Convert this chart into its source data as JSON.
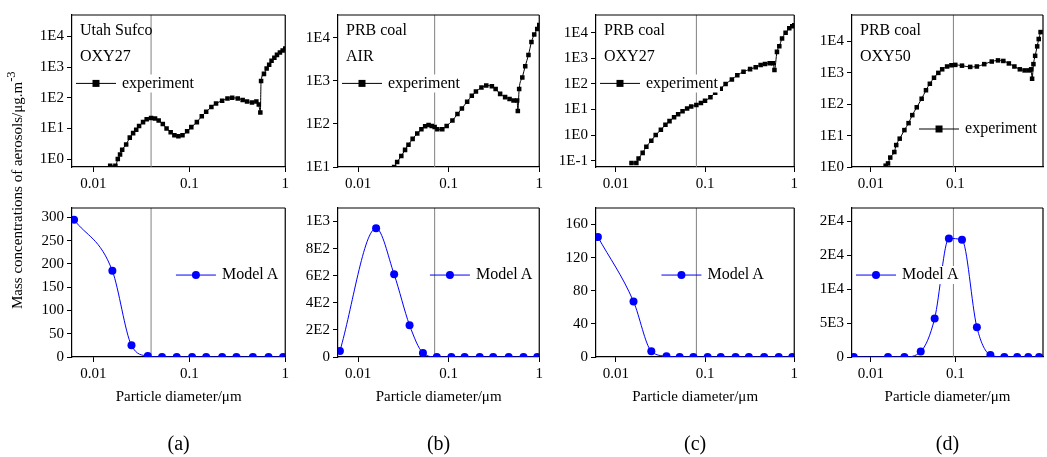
{
  "chart_data": [
    {
      "type": "line",
      "ylabel": "Mass concentrations of aerosols/μg.m$^{-3}$",
      "annotations": [
        "Utah Sufco",
        "OXY27"
      ],
      "log": "xy",
      "legend": "left",
      "marker": "square",
      "line_style": "solid",
      "xlim": [
        0.006,
        1
      ],
      "xticks": [
        0.01,
        0.1,
        1
      ],
      "ylim": [
        0.55,
        50000
      ],
      "yticks": [
        {
          "value": 1,
          "label": "1E0"
        },
        {
          "value": 10,
          "label": "1E1"
        },
        {
          "value": 100,
          "label": "1E2"
        },
        {
          "value": 1000,
          "label": "1E3"
        },
        {
          "value": 10000,
          "label": "1E4"
        }
      ],
      "ref_lines": [
        {
          "axis": "x",
          "value": 0.04,
          "color": "#808080"
        }
      ],
      "series": [
        {
          "name": "experiment",
          "color": "#000000",
          "x": [
            0.015,
            0.017,
            0.018,
            0.019,
            0.02,
            0.022,
            0.024,
            0.026,
            0.028,
            0.03,
            0.033,
            0.036,
            0.04,
            0.044,
            0.048,
            0.053,
            0.058,
            0.064,
            0.07,
            0.077,
            0.085,
            0.095,
            0.105,
            0.12,
            0.135,
            0.15,
            0.17,
            0.19,
            0.22,
            0.25,
            0.28,
            0.32,
            0.36,
            0.4,
            0.45,
            0.5,
            0.53,
            0.55,
            0.56,
            0.6,
            0.64,
            0.68,
            0.72,
            0.77,
            0.82,
            0.88,
            0.94,
            1.0
          ],
          "values": [
            0.6,
            0.6,
            1.0,
            1.4,
            2,
            3,
            5,
            7,
            9,
            12,
            16,
            20,
            22,
            21,
            18,
            14,
            10,
            7.5,
            6,
            5.5,
            6,
            8,
            11,
            16,
            25,
            35,
            50,
            65,
            80,
            95,
            100,
            95,
            85,
            75,
            70,
            75,
            60,
            33,
            350,
            600,
            900,
            1200,
            1600,
            2000,
            2500,
            3000,
            3500,
            4000
          ]
        }
      ]
    },
    {
      "type": "line",
      "annotations": [
        "PRB coal",
        "AIR"
      ],
      "log": "xy",
      "legend": "left",
      "marker": "square",
      "line_style": "solid",
      "xlim": [
        0.006,
        1
      ],
      "xticks": [
        0.01,
        0.1,
        1
      ],
      "ylim": [
        10,
        34000
      ],
      "yticks": [
        {
          "value": 10,
          "label": "1E1"
        },
        {
          "value": 100,
          "label": "1E2"
        },
        {
          "value": 1000,
          "label": "1E3"
        },
        {
          "value": 10000,
          "label": "1E4"
        }
      ],
      "ref_lines": [
        {
          "axis": "x",
          "value": 0.07,
          "color": "#808080"
        }
      ],
      "series": [
        {
          "name": "experiment",
          "color": "#000000",
          "x": [
            0.025,
            0.027,
            0.03,
            0.033,
            0.036,
            0.04,
            0.045,
            0.05,
            0.055,
            0.06,
            0.065,
            0.07,
            0.075,
            0.085,
            0.095,
            0.11,
            0.125,
            0.14,
            0.16,
            0.18,
            0.2,
            0.23,
            0.26,
            0.3,
            0.33,
            0.37,
            0.42,
            0.47,
            0.52,
            0.57,
            0.58,
            0.6,
            0.65,
            0.7,
            0.76,
            0.82,
            0.88,
            0.95,
            1.0
          ],
          "values": [
            10,
            13,
            18,
            25,
            33,
            45,
            60,
            75,
            88,
            95,
            90,
            85,
            75,
            75,
            90,
            120,
            170,
            230,
            330,
            450,
            570,
            700,
            780,
            750,
            650,
            500,
            420,
            380,
            350,
            350,
            200,
            650,
            1200,
            2200,
            4000,
            8000,
            12000,
            16000,
            20000
          ]
        }
      ]
    },
    {
      "type": "line",
      "annotations": [
        "PRB coal",
        "OXY27"
      ],
      "log": "xy",
      "legend": "left",
      "marker": "square",
      "line_style": "solid",
      "xlim": [
        0.006,
        1
      ],
      "xticks": [
        0.01,
        0.1,
        1
      ],
      "ylim": [
        0.056,
        50000
      ],
      "yticks": [
        {
          "value": 0.1,
          "label": "1E-1"
        },
        {
          "value": 1,
          "label": "1E0"
        },
        {
          "value": 10,
          "label": "1E1"
        },
        {
          "value": 100,
          "label": "1E2"
        },
        {
          "value": 1000,
          "label": "1E3"
        },
        {
          "value": 10000,
          "label": "1E4"
        }
      ],
      "ref_lines": [
        {
          "axis": "x",
          "value": 0.08,
          "color": "#808080"
        }
      ],
      "series": [
        {
          "name": "experiment",
          "color": "#000000",
          "x": [
            0.015,
            0.017,
            0.018,
            0.02,
            0.022,
            0.025,
            0.028,
            0.032,
            0.036,
            0.04,
            0.045,
            0.05,
            0.056,
            0.063,
            0.07,
            0.08,
            0.09,
            0.1,
            0.115,
            0.13,
            0.15,
            0.17,
            0.2,
            0.23,
            0.27,
            0.32,
            0.37,
            0.42,
            0.47,
            0.53,
            0.58,
            0.6,
            0.64,
            0.68,
            0.73,
            0.8,
            0.88,
            0.95,
            1.0
          ],
          "values": [
            0.08,
            0.08,
            0.12,
            0.2,
            0.35,
            0.6,
            1,
            1.6,
            2.5,
            3.5,
            5,
            6.5,
            8.5,
            11,
            13,
            15,
            18,
            22,
            30,
            45,
            65,
            100,
            150,
            220,
            300,
            380,
            450,
            550,
            600,
            650,
            650,
            350,
            1800,
            3000,
            6000,
            10000,
            15000,
            18000,
            20000
          ]
        }
      ]
    },
    {
      "type": "line",
      "annotations": [
        "PRB coal",
        "OXY50"
      ],
      "log": "xy",
      "legend": "bottom right",
      "marker": "square",
      "line_style": "solid",
      "xlim": [
        0.006,
        1.09
      ],
      "xticks": [
        0.01,
        0.1
      ],
      "ylim": [
        1,
        70000
      ],
      "yticks": [
        {
          "value": 1,
          "label": "1E0"
        },
        {
          "value": 10,
          "label": "1E1"
        },
        {
          "value": 100,
          "label": "1E2"
        },
        {
          "value": 1000,
          "label": "1E3"
        },
        {
          "value": 10000,
          "label": "1E4"
        }
      ],
      "ref_lines": [
        {
          "axis": "x",
          "value": 0.095,
          "color": "#808080"
        }
      ],
      "series": [
        {
          "name": "experiment",
          "color": "#000000",
          "x": [
            0.015,
            0.016,
            0.017,
            0.019,
            0.02,
            0.022,
            0.025,
            0.028,
            0.031,
            0.035,
            0.04,
            0.045,
            0.05,
            0.056,
            0.063,
            0.07,
            0.08,
            0.09,
            0.1,
            0.12,
            0.15,
            0.18,
            0.22,
            0.27,
            0.32,
            0.37,
            0.43,
            0.5,
            0.58,
            0.66,
            0.74,
            0.79,
            0.81,
            0.84,
            0.88,
            0.93,
            0.97,
            1.02
          ],
          "values": [
            1.1,
            1.3,
            2,
            3,
            5,
            8,
            15,
            25,
            45,
            80,
            150,
            280,
            450,
            700,
            1000,
            1300,
            1600,
            1750,
            1800,
            1700,
            1550,
            1600,
            1900,
            2300,
            2500,
            2400,
            2000,
            1600,
            1300,
            1200,
            1200,
            1300,
            650,
            1900,
            3500,
            7000,
            12000,
            20000
          ]
        }
      ]
    },
    {
      "type": "line",
      "xlabel": "Particle diameter/μm",
      "annotations": [
        "(a)"
      ],
      "log": "x",
      "legend": "right",
      "marker": "circle",
      "line_style": "solid",
      "xlim": [
        0.006,
        1
      ],
      "xticks": [
        0.01,
        0.1,
        1
      ],
      "ylim": [
        0,
        320
      ],
      "yticks": [
        0,
        50,
        100,
        150,
        200,
        250,
        300
      ],
      "ref_lines": [
        {
          "axis": "x",
          "value": 0.04,
          "color": "#808080"
        }
      ],
      "x": [
        0.0063,
        0.0158,
        0.025,
        0.037,
        0.052,
        0.074,
        0.107,
        0.15,
        0.22,
        0.31,
        0.46,
        0.67,
        0.95
      ],
      "series": [
        {
          "name": "Model A",
          "color": "#0000ff",
          "values": [
            295,
            185,
            25,
            2,
            0,
            0,
            0,
            0,
            0,
            0,
            0,
            0,
            0
          ]
        }
      ]
    },
    {
      "type": "line",
      "xlabel": "Particle diameter/μm",
      "annotations": [
        "(b)"
      ],
      "log": "x",
      "legend": "right",
      "marker": "circle",
      "line_style": "solid",
      "xlim": [
        0.006,
        1
      ],
      "xticks": [
        0.01,
        0.1,
        1
      ],
      "ylim": [
        0,
        1100
      ],
      "yticks": [
        0,
        {
          "value": 200,
          "label": "2E2"
        },
        {
          "value": 400,
          "label": "4E2"
        },
        {
          "value": 600,
          "label": "6E2"
        },
        {
          "value": 800,
          "label": "8E2"
        },
        {
          "value": 1000,
          "label": "1E3"
        }
      ],
      "ref_lines": [
        {
          "axis": "x",
          "value": 0.07,
          "color": "#808080"
        }
      ],
      "x": [
        0.0063,
        0.0158,
        0.025,
        0.037,
        0.052,
        0.074,
        0.107,
        0.15,
        0.22,
        0.31,
        0.46,
        0.67,
        0.95
      ],
      "series": [
        {
          "name": "Model A",
          "color": "#0000ff",
          "values": [
            45,
            950,
            610,
            235,
            30,
            0,
            0,
            0,
            0,
            0,
            0,
            0,
            0
          ]
        }
      ]
    },
    {
      "type": "line",
      "xlabel": "Particle diameter/μm",
      "annotations": [
        "(c)"
      ],
      "log": "x",
      "legend": "center",
      "marker": "circle",
      "line_style": "solid",
      "xlim": [
        0.006,
        1
      ],
      "xticks": [
        0.01,
        0.1,
        1
      ],
      "ylim": [
        0,
        180
      ],
      "yticks": [
        0,
        40,
        80,
        120,
        160
      ],
      "ref_lines": [
        {
          "axis": "x",
          "value": 0.08,
          "color": "#808080"
        }
      ],
      "x": [
        0.0063,
        0.0158,
        0.025,
        0.037,
        0.052,
        0.074,
        0.107,
        0.15,
        0.22,
        0.31,
        0.46,
        0.67,
        0.95
      ],
      "series": [
        {
          "name": "Model A",
          "color": "#0000ff",
          "values": [
            145,
            67,
            7,
            1,
            0,
            0,
            0,
            0,
            0,
            0,
            0,
            0,
            0
          ]
        }
      ]
    },
    {
      "type": "line",
      "xlabel": "Particle diameter/μm",
      "annotations": [
        "(d)"
      ],
      "log": "x",
      "legend": "left",
      "marker": "circle",
      "line_style": "solid",
      "xlim": [
        0.006,
        1.09
      ],
      "xticks": [
        0.01,
        0.1
      ],
      "ylim": [
        0,
        22000
      ],
      "yticks": [
        0,
        {
          "value": 5000,
          "label": "5E3"
        },
        {
          "value": 10000,
          "label": "1E4"
        },
        {
          "value": 15000,
          "label": "2E4"
        },
        {
          "value": 20000,
          "label": "2E4"
        }
      ],
      "ref_lines": [
        {
          "axis": "x",
          "value": 0.095,
          "color": "#808080"
        }
      ],
      "x": [
        0.0063,
        0.016,
        0.025,
        0.039,
        0.057,
        0.084,
        0.12,
        0.18,
        0.26,
        0.38,
        0.54,
        0.73,
        0.98
      ],
      "series": [
        {
          "name": "Model A",
          "color": "#0000ff",
          "values": [
            0,
            0,
            0,
            800,
            5700,
            17500,
            17300,
            4400,
            300,
            0,
            0,
            0,
            0
          ]
        }
      ]
    }
  ]
}
